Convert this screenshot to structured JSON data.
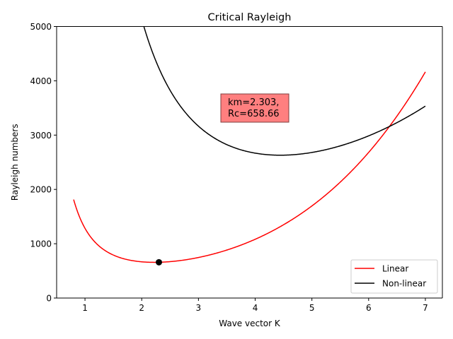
{
  "chart_data": {
    "type": "line",
    "title": "Critical Rayleigh",
    "xlabel": "Wave vector K",
    "ylabel": "Rayleigh numbers",
    "xlim": [
      0.5,
      7.3
    ],
    "ylim": [
      0,
      5000
    ],
    "xticks": [
      1,
      2,
      3,
      4,
      5,
      6,
      7
    ],
    "yticks": [
      0,
      1000,
      2000,
      3000,
      4000,
      5000
    ],
    "grid": false,
    "legend": "lower right",
    "series": [
      {
        "name": "Linear",
        "color": "#ff0000",
        "formula": "(pi^2 + k^2)^3 / k^2",
        "x_range": [
          0.8,
          7.0
        ]
      },
      {
        "name": "Non-linear",
        "color": "#000000",
        "formula": "(4*pi^2 + k^2)^3 / (4*k^2)",
        "x_range": [
          0.8,
          7.0
        ]
      }
    ],
    "marker": {
      "x": 2.303,
      "y": 658.66,
      "color": "#000000"
    },
    "annotation": {
      "line1": "km=2.303,",
      "line2": "Rc=658.66",
      "box_color": "#ff7f7f"
    }
  }
}
